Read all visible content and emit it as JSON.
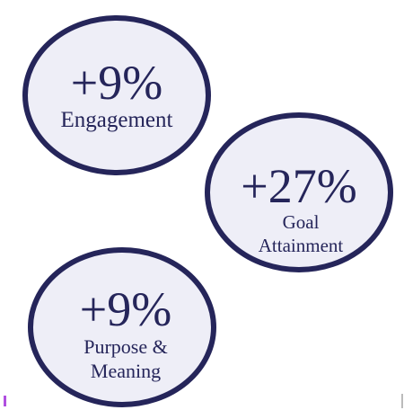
{
  "bubbles": [
    {
      "figure": "+9%",
      "label": [
        "Engagement"
      ]
    },
    {
      "figure": "+27%",
      "label": [
        "Goal",
        "Attainment"
      ]
    },
    {
      "figure": "+9%",
      "label": [
        "Purpose &",
        "Meaning"
      ]
    }
  ]
}
